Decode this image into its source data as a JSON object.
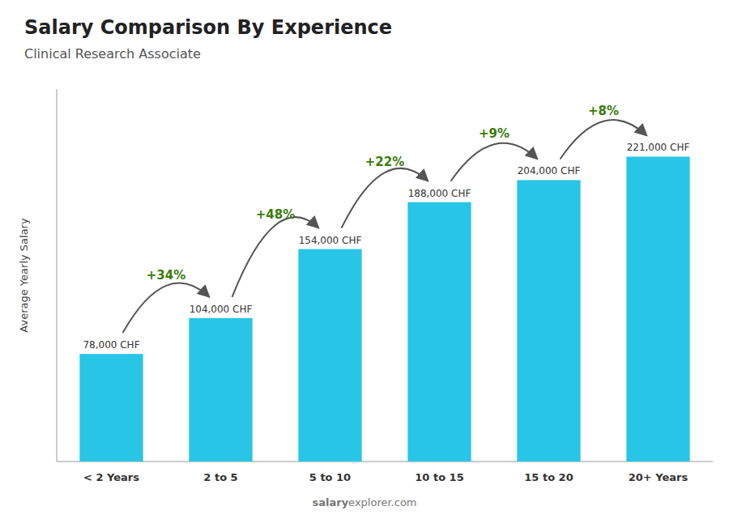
{
  "chart_data": {
    "type": "bar",
    "title": "Salary Comparison By Experience",
    "subtitle": "Clinical Research Associate",
    "categories": [
      "< 2 Years",
      "2 to 5",
      "5 to 10",
      "10 to 15",
      "15 to 20",
      "20+ Years"
    ],
    "values": [
      78000,
      104000,
      154000,
      188000,
      204000,
      221000
    ],
    "value_labels": [
      "78,000 CHF",
      "104,000 CHF",
      "154,000 CHF",
      "188,000 CHF",
      "204,000 CHF",
      "221,000 CHF"
    ],
    "data_labels": true,
    "annotations": [
      null,
      "+34%",
      "+48%",
      "+22%",
      "+9%",
      "+8%"
    ],
    "ylabel": "Average Yearly Salary",
    "watermark": [
      "salary",
      "explorer.com"
    ],
    "color": "#29c5e6",
    "ylim": [
      0,
      270000
    ],
    "grid": false,
    "tick_labels": "x"
  }
}
